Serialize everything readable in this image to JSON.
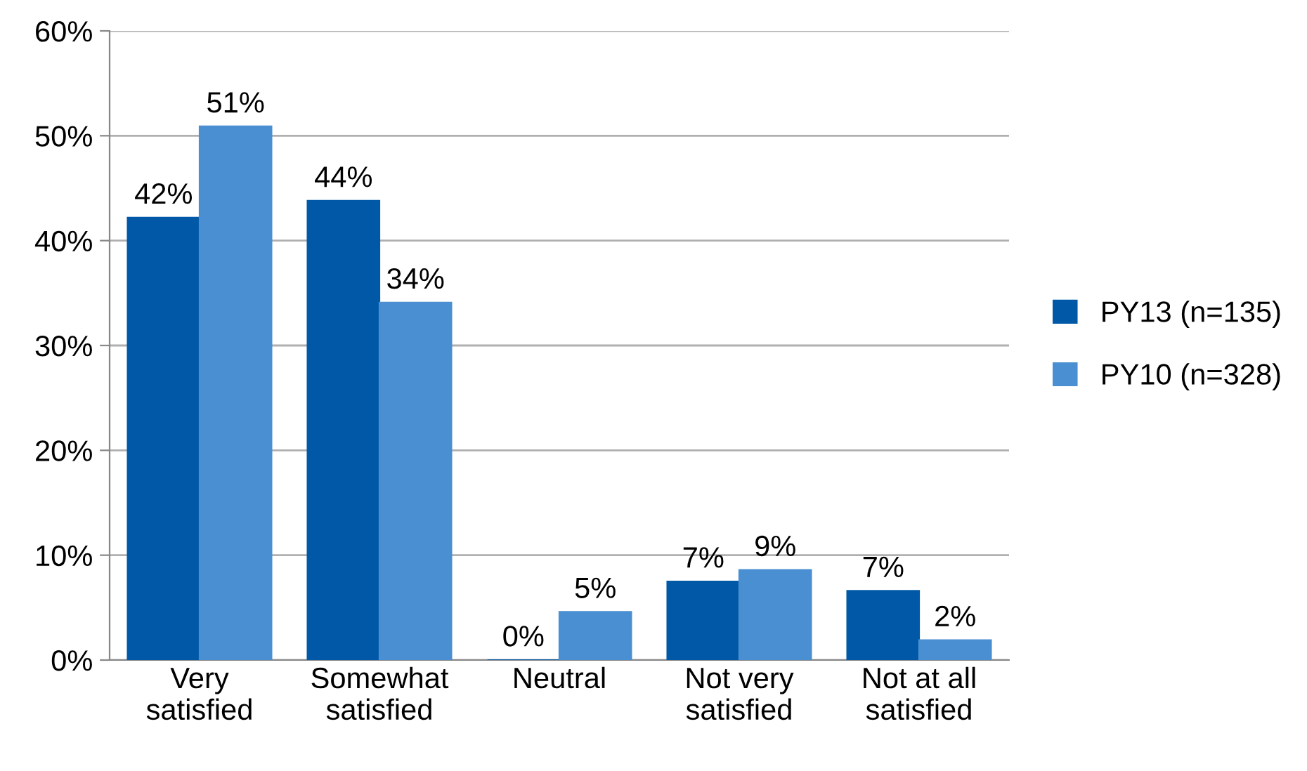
{
  "chart_data": {
    "type": "bar",
    "categories": [
      "Very\nsatisfied",
      "Somewhat\nsatisfied",
      "Neutral",
      "Not very\nsatisfied",
      "Not at all\nsatisfied"
    ],
    "series": [
      {
        "name": "PY13 (n=135)",
        "color": "#0158a6",
        "values": [
          42.2,
          43.8,
          0,
          7.5,
          6.6
        ],
        "value_labels": [
          "42%",
          "44%",
          "0%",
          "7%",
          "7%"
        ]
      },
      {
        "name": "PY10 (n=328)",
        "color": "#4a8fd2",
        "values": [
          50.9,
          34.1,
          4.6,
          8.6,
          1.9
        ],
        "value_labels": [
          "51%",
          "34%",
          "5%",
          "9%",
          "2%"
        ]
      }
    ],
    "ylim": [
      0,
      60
    ],
    "yticks": [
      {
        "value": 0,
        "label": "0%"
      },
      {
        "value": 10,
        "label": "10%"
      },
      {
        "value": 20,
        "label": "20%"
      },
      {
        "value": 30,
        "label": "30%"
      },
      {
        "value": 40,
        "label": "40%"
      },
      {
        "value": 50,
        "label": "50%"
      },
      {
        "value": 60,
        "label": "60%"
      }
    ],
    "grid": "y",
    "legend": "right"
  }
}
